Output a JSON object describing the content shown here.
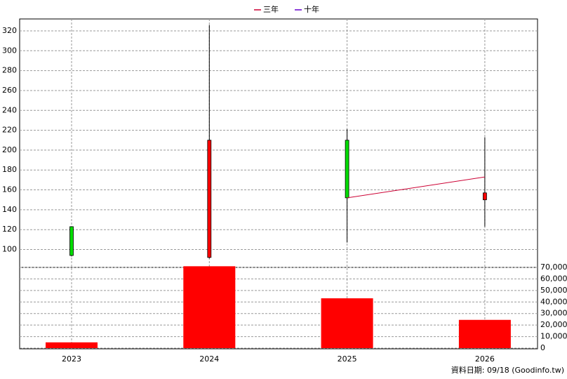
{
  "chart_data": {
    "type": "candlestick",
    "categories": [
      "2023",
      "2024",
      "2025",
      "2026"
    ],
    "open": [
      123,
      92,
      210,
      150
    ],
    "high": [
      123,
      326,
      221,
      213
    ],
    "low": [
      93,
      91,
      107,
      123
    ],
    "close": [
      94,
      210,
      152,
      157
    ],
    "up_color": "#ff0000",
    "down_color": "#00dd00",
    "ylim": [
      82,
      332
    ],
    "yticks": [
      100,
      120,
      140,
      160,
      180,
      200,
      220,
      240,
      260,
      280,
      300,
      320
    ],
    "series": [
      {
        "name": "三年",
        "color": "#cc0033",
        "values": [
          null,
          null,
          152,
          173
        ]
      },
      {
        "name": "十年",
        "color": "#6600cc",
        "values": [
          null,
          null,
          null,
          null
        ]
      }
    ],
    "volume": {
      "values": [
        5000,
        71000,
        43200,
        24500
      ],
      "color": "#ff0000"
    },
    "y2lim": [
      0,
      70000
    ],
    "y2ticks": [
      0,
      {
        "value": 10000,
        "label": "10,000"
      },
      {
        "value": 20000,
        "label": "20,000"
      },
      {
        "value": 30000,
        "label": "30,000"
      },
      {
        "value": 40000,
        "label": "40,000"
      },
      {
        "value": 50000,
        "label": "50,000"
      },
      {
        "value": 60000,
        "label": "60,000"
      },
      {
        "value": 70000,
        "label": "70,000"
      }
    ],
    "grid": true,
    "footer": "資料日期: 09/18  (Goodinfo.tw)"
  }
}
